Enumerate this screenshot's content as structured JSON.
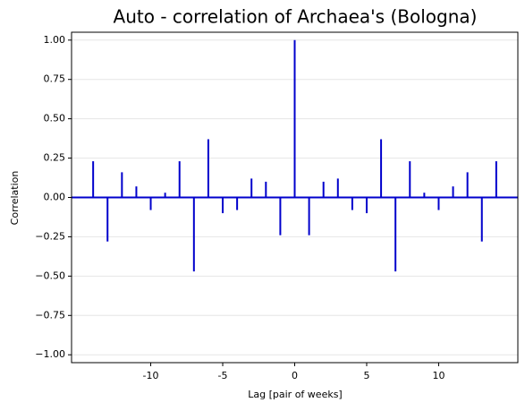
{
  "chart_data": {
    "type": "stem",
    "title": "Auto - correlation of Archaea's (Bologna)",
    "xlabel": "Lag [pair of weeks]",
    "ylabel": "Correlation",
    "x": [
      -14,
      -13,
      -12,
      -11,
      -10,
      -9,
      -8,
      -7,
      -6,
      -5,
      -4,
      -3,
      -2,
      -1,
      0,
      1,
      2,
      3,
      4,
      5,
      6,
      7,
      8,
      9,
      10,
      11,
      12,
      13,
      14
    ],
    "values": [
      0.23,
      -0.28,
      0.16,
      0.07,
      -0.08,
      0.03,
      0.23,
      -0.47,
      0.37,
      -0.1,
      -0.08,
      0.12,
      0.1,
      -0.24,
      1.0,
      -0.24,
      0.1,
      0.12,
      -0.08,
      -0.1,
      0.37,
      -0.47,
      0.23,
      0.03,
      -0.08,
      0.07,
      0.16,
      -0.28,
      0.23
    ],
    "color": "#0000cc",
    "xlim": [
      -15.5,
      15.5
    ],
    "xticks": [
      -10,
      -5,
      0,
      5,
      10
    ],
    "ylim": [
      -1.05,
      1.05
    ],
    "yticks": [
      {
        "value": -1,
        "label": "−1.00"
      },
      {
        "value": -0.75,
        "label": "−0.75"
      },
      {
        "value": -0.5,
        "label": "−0.50"
      },
      {
        "value": -0.25,
        "label": "−0.25"
      },
      {
        "value": 0,
        "label": "0.00"
      },
      {
        "value": 0.25,
        "label": "0.25"
      },
      {
        "value": 0.5,
        "label": "0.50"
      },
      {
        "value": 0.75,
        "label": "0.75"
      },
      {
        "value": 1,
        "label": "1.00"
      }
    ],
    "grid": true
  }
}
